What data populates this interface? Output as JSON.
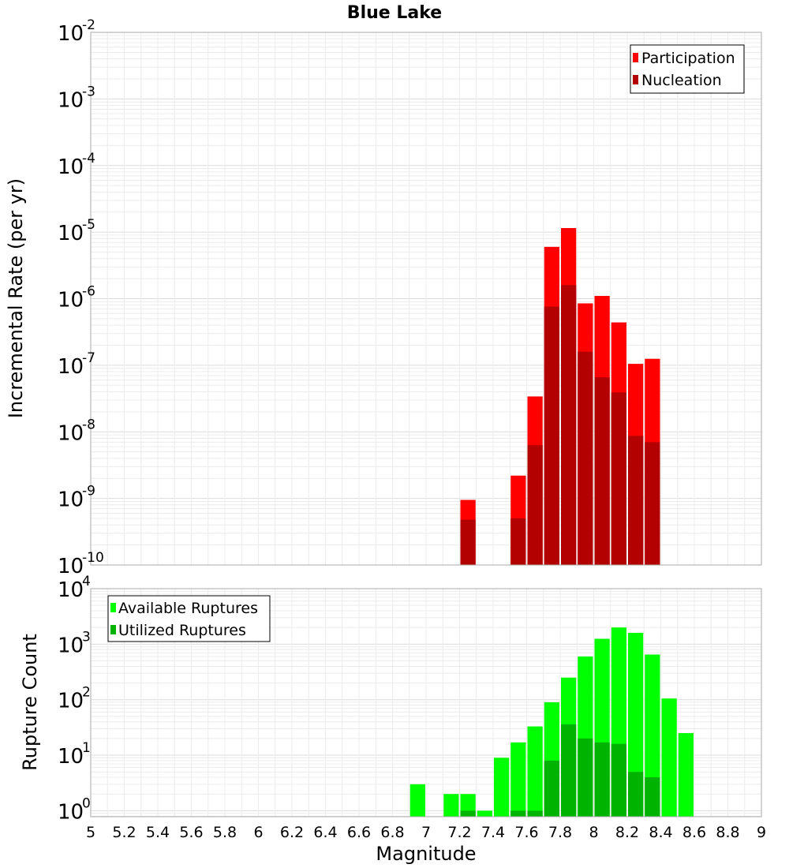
{
  "chart_data": [
    {
      "type": "bar",
      "title": "Blue Lake",
      "xlabel": "",
      "ylabel": "Incremental Rate (per yr)",
      "yscale": "log",
      "ylim_exp": [
        -10,
        -2
      ],
      "xlim": [
        5,
        9
      ],
      "grid": true,
      "legend_position": "top-right",
      "bin_width": 0.1,
      "ytick_exponents": [
        "-2",
        "-3",
        "-4",
        "-5",
        "-6",
        "-7",
        "-8",
        "-9",
        "-10"
      ],
      "series": [
        {
          "name": "Participation",
          "color": "#ff0000",
          "points": [
            {
              "x": 7.25,
              "y": 9.5e-10
            },
            {
              "x": 7.55,
              "y": 2.2e-09
            },
            {
              "x": 7.65,
              "y": 3.4e-08
            },
            {
              "x": 7.75,
              "y": 6e-06
            },
            {
              "x": 7.85,
              "y": 1.15e-05
            },
            {
              "x": 7.95,
              "y": 8.5e-07
            },
            {
              "x": 8.05,
              "y": 1.1e-06
            },
            {
              "x": 8.15,
              "y": 4.4e-07
            },
            {
              "x": 8.25,
              "y": 1.05e-07
            },
            {
              "x": 8.35,
              "y": 1.25e-07
            }
          ]
        },
        {
          "name": "Nucleation",
          "color": "#b30000",
          "points": [
            {
              "x": 7.25,
              "y": 4.8e-10
            },
            {
              "x": 7.55,
              "y": 5e-10
            },
            {
              "x": 7.65,
              "y": 6.3e-09
            },
            {
              "x": 7.75,
              "y": 7.6e-07
            },
            {
              "x": 7.85,
              "y": 1.6e-06
            },
            {
              "x": 7.95,
              "y": 1.6e-07
            },
            {
              "x": 8.05,
              "y": 6.6e-08
            },
            {
              "x": 8.15,
              "y": 3.9e-08
            },
            {
              "x": 8.25,
              "y": 8.7e-09
            },
            {
              "x": 8.35,
              "y": 7e-09
            }
          ]
        }
      ]
    },
    {
      "type": "bar",
      "title": "",
      "xlabel": "Magnitude",
      "ylabel": "Rupture Count",
      "yscale": "log",
      "ylim_exp": [
        0,
        4
      ],
      "ylim": [
        0.78,
        10000
      ],
      "xlim": [
        5,
        9
      ],
      "grid": true,
      "legend_position": "top-left",
      "bin_width": 0.1,
      "ytick_exponents": [
        "4",
        "3",
        "2",
        "1",
        "0"
      ],
      "xticks": [
        "5",
        "5.2",
        "5.4",
        "5.6",
        "5.8",
        "6",
        "6.2",
        "6.4",
        "6.6",
        "6.8",
        "7",
        "7.2",
        "7.4",
        "7.6",
        "7.8",
        "8",
        "8.2",
        "8.4",
        "8.6",
        "8.8",
        "9"
      ],
      "series": [
        {
          "name": "Available Ruptures",
          "color": "#00ff00",
          "points": [
            {
              "x": 6.95,
              "y": 3
            },
            {
              "x": 7.15,
              "y": 2
            },
            {
              "x": 7.25,
              "y": 2
            },
            {
              "x": 7.35,
              "y": 1
            },
            {
              "x": 7.45,
              "y": 9
            },
            {
              "x": 7.55,
              "y": 17
            },
            {
              "x": 7.65,
              "y": 33
            },
            {
              "x": 7.75,
              "y": 90
            },
            {
              "x": 7.85,
              "y": 250
            },
            {
              "x": 7.95,
              "y": 600
            },
            {
              "x": 8.05,
              "y": 1250
            },
            {
              "x": 8.15,
              "y": 2000
            },
            {
              "x": 8.25,
              "y": 1600
            },
            {
              "x": 8.35,
              "y": 650
            },
            {
              "x": 8.45,
              "y": 105
            },
            {
              "x": 8.55,
              "y": 25
            }
          ]
        },
        {
          "name": "Utilized Ruptures",
          "color": "#00b300",
          "points": [
            {
              "x": 7.25,
              "y": 1
            },
            {
              "x": 7.55,
              "y": 1
            },
            {
              "x": 7.65,
              "y": 1
            },
            {
              "x": 7.75,
              "y": 8
            },
            {
              "x": 7.85,
              "y": 36
            },
            {
              "x": 7.95,
              "y": 20
            },
            {
              "x": 8.05,
              "y": 17
            },
            {
              "x": 8.15,
              "y": 16
            },
            {
              "x": 8.25,
              "y": 5
            },
            {
              "x": 8.35,
              "y": 4
            }
          ]
        }
      ]
    }
  ]
}
